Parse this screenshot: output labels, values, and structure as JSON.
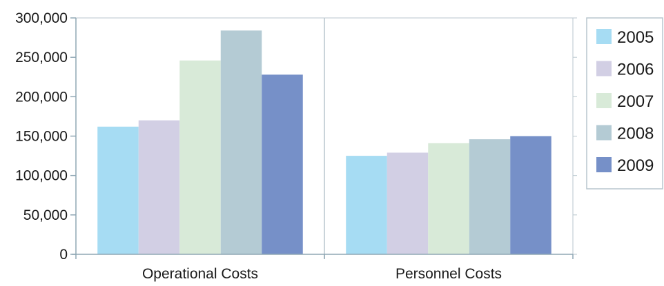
{
  "chart_data": {
    "type": "bar",
    "title": "",
    "xlabel": "",
    "ylabel": "",
    "categories": [
      "Operational Costs",
      "Personnel Costs"
    ],
    "ylim": [
      0,
      300000
    ],
    "yticks": [
      "0",
      "50,000",
      "100,000",
      "150,000",
      "200,000",
      "250,000",
      "300,000"
    ],
    "ytick_values": [
      0,
      50000,
      100000,
      150000,
      200000,
      250000,
      300000
    ],
    "grid": "vertical divider between categories",
    "legend_position": "right",
    "series": [
      {
        "name": "2005",
        "values": [
          162000,
          125000
        ],
        "color": "#a6dcf3"
      },
      {
        "name": "2006",
        "values": [
          170000,
          129000
        ],
        "color": "#d2cfe4"
      },
      {
        "name": "2007",
        "values": [
          246000,
          141000
        ],
        "color": "#d8ead8"
      },
      {
        "name": "2008",
        "values": [
          284000,
          146000
        ],
        "color": "#b4cbd4"
      },
      {
        "name": "2009",
        "values": [
          228000,
          150000
        ],
        "color": "#7690c8"
      }
    ]
  }
}
